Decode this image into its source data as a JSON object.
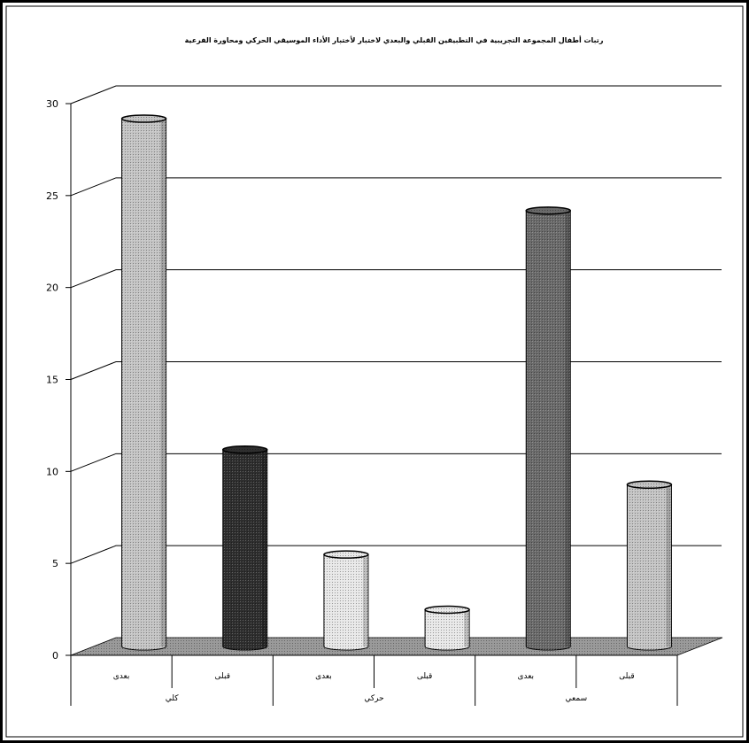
{
  "chart_data": {
    "type": "bar",
    "title": "رتبات أطفال المجموعة التجريبية في التطبيقين القبلي والبعدي لاختبار لأختبار الأداء الموسيقي الحركي ومحاورة الفرعية",
    "ylim": [
      0,
      30
    ],
    "yticks": [
      "0",
      "5",
      "10",
      "15",
      "20",
      "25",
      "30"
    ],
    "grid": true,
    "groups": [
      "كلي",
      "حركي",
      "سمعي"
    ],
    "categories": [
      "بعدى",
      "قبلى",
      "بعدى",
      "قبلى",
      "بعدى",
      "قبلى"
    ],
    "values": [
      28.7,
      10.7,
      5.0,
      2.0,
      23.7,
      8.8
    ],
    "bar_fills": [
      "#c4c4c4",
      "#2e2e2e",
      "#e8e8e8",
      "#e8e8e8",
      "#6a6a6a",
      "#c4c4c4"
    ],
    "floor_color": "#9a9a9a"
  }
}
